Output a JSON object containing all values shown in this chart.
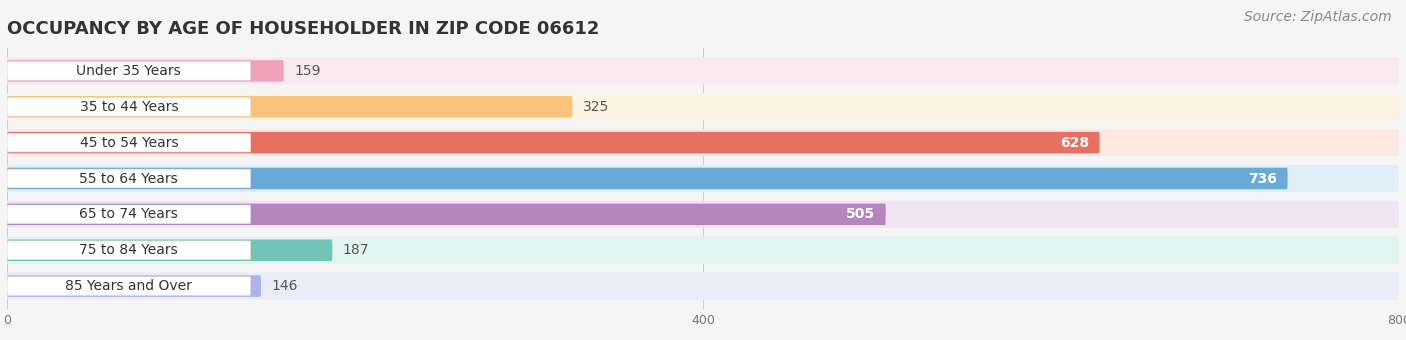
{
  "title": "OCCUPANCY BY AGE OF HOUSEHOLDER IN ZIP CODE 06612",
  "source": "Source: ZipAtlas.com",
  "categories": [
    "Under 35 Years",
    "35 to 44 Years",
    "45 to 54 Years",
    "55 to 64 Years",
    "65 to 74 Years",
    "75 to 84 Years",
    "85 Years and Over"
  ],
  "values": [
    159,
    325,
    628,
    736,
    505,
    187,
    146
  ],
  "bar_colors": [
    "#f2a0b8",
    "#f9c47a",
    "#e87060",
    "#6aaad8",
    "#b585be",
    "#72c4b8",
    "#aab4e8"
  ],
  "bar_bg_colors": [
    "#faeaef",
    "#fdf3e3",
    "#fde8e4",
    "#e0eef8",
    "#f0e4f5",
    "#e0f4f0",
    "#eaecf8"
  ],
  "xlim": [
    0,
    800
  ],
  "xticks": [
    0,
    400,
    800
  ],
  "title_fontsize": 13,
  "source_fontsize": 10,
  "label_fontsize": 10,
  "value_fontsize": 10,
  "figsize": [
    14.06,
    3.4
  ],
  "dpi": 100,
  "background_color": "#f5f5f5"
}
